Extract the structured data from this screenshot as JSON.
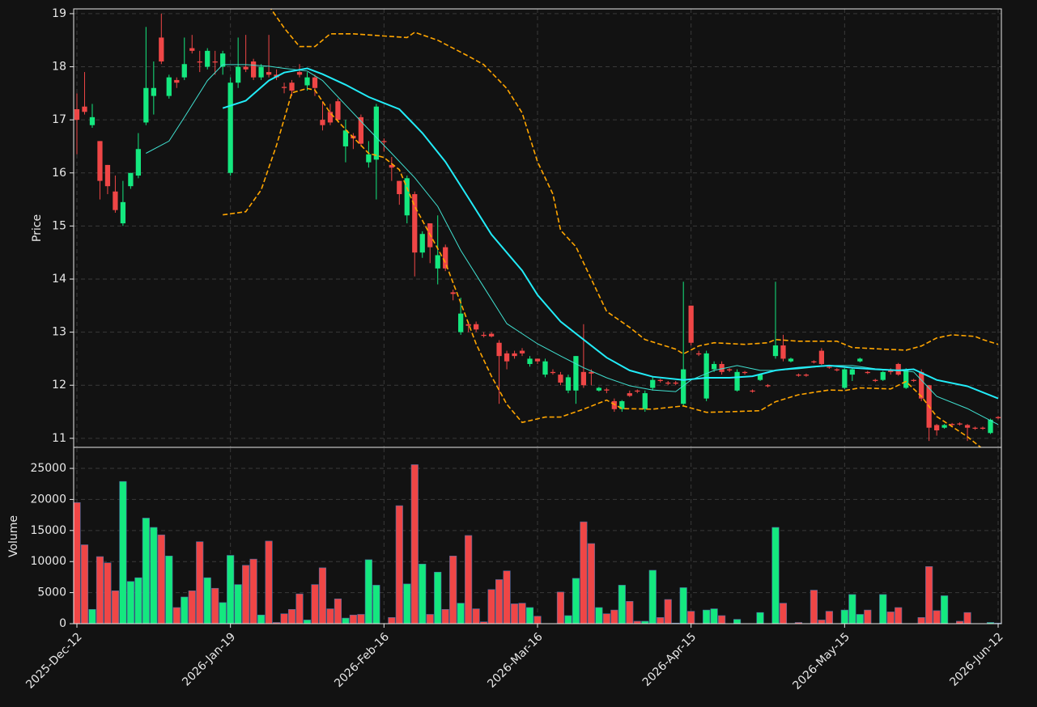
{
  "chart_data": [
    {
      "type": "candlestick",
      "ylabel": "Price",
      "categories": [
        "2025-Dec-12",
        null,
        null,
        null,
        null,
        null,
        null,
        null,
        null,
        null,
        null,
        null,
        null,
        null,
        null,
        null,
        null,
        null,
        null,
        null,
        "2026-Jan-19",
        null,
        null,
        null,
        null,
        null,
        null,
        null,
        null,
        null,
        null,
        null,
        null,
        null,
        null,
        null,
        null,
        null,
        null,
        null,
        "2026-Feb-16",
        null,
        null,
        null,
        null,
        null,
        null,
        null,
        null,
        null,
        null,
        null,
        null,
        null,
        null,
        null,
        null,
        null,
        null,
        null,
        "2026-Mar-16",
        null,
        null,
        null,
        null,
        null,
        null,
        null,
        null,
        null,
        null,
        null,
        null,
        null,
        null,
        null,
        null,
        null,
        null,
        null,
        "2026-Apr-15",
        null,
        null,
        null,
        null,
        null,
        null,
        null,
        null,
        null,
        null,
        null,
        null,
        null,
        null,
        null,
        null,
        null,
        null,
        null,
        "2026-May-15",
        null,
        null,
        null,
        null,
        null,
        null,
        null,
        null,
        null,
        null,
        null,
        null,
        null,
        null,
        null,
        null,
        null,
        null,
        null,
        "2026-Jun-12"
      ],
      "open": [
        17.2,
        17.25,
        16.9,
        16.6,
        16.15,
        15.65,
        15.05,
        15.75,
        15.95,
        16.95,
        17.45,
        18.55,
        17.45,
        17.75,
        17.8,
        18.35,
        18.1,
        18.0,
        18.1,
        18.0,
        16.0,
        17.7,
        18.0,
        18.1,
        17.8,
        17.9,
        17.85,
        17.62,
        17.7,
        17.9,
        17.65,
        17.8,
        17.0,
        17.15,
        17.35,
        16.5,
        16.7,
        17.05,
        16.2,
        16.25,
        16.6,
        16.15,
        15.85,
        15.2,
        15.6,
        14.5,
        15.05,
        14.2,
        14.6,
        13.75,
        13.0,
        13.15,
        13.15,
        12.95,
        12.97,
        12.8,
        12.6,
        12.6,
        12.65,
        12.4,
        12.5,
        12.2,
        12.25,
        12.2,
        11.9,
        11.9,
        12.25,
        12.25,
        11.9,
        11.92,
        11.7,
        11.55,
        11.85,
        11.9,
        11.55,
        11.95,
        12.1,
        12.05,
        12.05,
        11.65,
        13.5,
        12.6,
        11.75,
        12.3,
        12.4,
        12.3,
        11.9,
        12.25,
        11.9,
        12.1,
        12.0,
        12.55,
        12.75,
        12.45,
        12.2,
        12.2,
        12.45,
        12.65,
        12.35,
        12.3,
        11.95,
        12.2,
        12.45,
        12.25,
        12.1,
        12.1,
        12.3,
        12.4,
        11.95,
        12.1,
        12.25,
        12.0,
        11.25,
        11.2,
        11.27,
        11.28,
        11.25,
        11.2,
        11.2,
        11.1,
        11.4
      ],
      "high": [
        17.5,
        17.9,
        17.3,
        16.6,
        16.15,
        15.95,
        15.85,
        16.0,
        16.75,
        18.75,
        18.1,
        19.0,
        17.85,
        17.8,
        18.55,
        18.6,
        18.3,
        18.35,
        18.3,
        18.3,
        17.8,
        18.55,
        18.6,
        18.15,
        18.05,
        18.6,
        17.95,
        17.7,
        17.75,
        18.05,
        17.9,
        17.85,
        17.35,
        17.3,
        17.4,
        17.0,
        16.75,
        17.1,
        16.6,
        17.3,
        16.65,
        16.3,
        15.85,
        15.95,
        15.65,
        14.9,
        15.05,
        15.2,
        14.65,
        13.8,
        13.65,
        13.2,
        13.2,
        13.0,
        13.0,
        12.85,
        12.65,
        12.65,
        12.7,
        12.55,
        12.5,
        12.5,
        12.3,
        12.25,
        12.2,
        12.55,
        13.15,
        12.3,
        11.97,
        11.95,
        11.75,
        11.72,
        11.9,
        11.92,
        11.9,
        12.15,
        12.12,
        12.08,
        12.08,
        13.95,
        13.5,
        12.65,
        12.65,
        12.45,
        12.45,
        12.32,
        12.3,
        12.27,
        11.92,
        12.22,
        12.02,
        13.95,
        12.95,
        12.52,
        12.22,
        12.22,
        12.47,
        12.7,
        12.37,
        12.32,
        12.32,
        12.32,
        12.52,
        12.27,
        12.12,
        12.27,
        12.32,
        12.42,
        12.32,
        12.12,
        12.3,
        12.0,
        11.27,
        11.27,
        11.29,
        11.3,
        11.27,
        11.22,
        11.22,
        11.37,
        11.42
      ],
      "low": [
        16.35,
        17.1,
        16.85,
        15.5,
        15.6,
        15.25,
        15.0,
        15.7,
        15.9,
        16.9,
        17.1,
        18.05,
        17.4,
        17.6,
        17.75,
        18.25,
        17.9,
        17.95,
        17.85,
        17.85,
        15.95,
        17.6,
        17.9,
        17.75,
        17.75,
        17.8,
        17.75,
        17.5,
        17.45,
        17.8,
        17.55,
        17.45,
        16.8,
        16.9,
        16.95,
        16.2,
        16.45,
        16.5,
        16.1,
        15.5,
        16.4,
        15.85,
        15.4,
        15.05,
        14.05,
        14.4,
        14.3,
        13.9,
        14.15,
        13.6,
        12.95,
        13.0,
        13.0,
        12.9,
        12.9,
        11.65,
        12.3,
        12.5,
        12.55,
        12.35,
        12.4,
        12.15,
        12.2,
        12.0,
        11.85,
        11.65,
        11.95,
        12.0,
        11.88,
        11.85,
        11.5,
        11.5,
        11.78,
        11.85,
        11.5,
        11.9,
        12.05,
        12.0,
        12.0,
        11.6,
        12.75,
        12.55,
        11.7,
        12.25,
        12.2,
        12.25,
        11.88,
        12.2,
        11.86,
        12.08,
        11.96,
        12.5,
        12.45,
        12.43,
        12.16,
        12.16,
        12.41,
        12.38,
        12.31,
        12.26,
        11.93,
        12.08,
        12.43,
        12.21,
        12.06,
        12.08,
        12.2,
        12.18,
        11.93,
        12.06,
        11.7,
        10.95,
        11.05,
        11.18,
        11.23,
        11.24,
        10.95,
        11.16,
        11.16,
        11.08,
        11.36
      ],
      "close": [
        17.0,
        17.15,
        17.05,
        15.85,
        15.75,
        15.3,
        15.45,
        16.0,
        16.45,
        17.6,
        17.6,
        18.1,
        17.8,
        17.7,
        18.05,
        18.3,
        18.08,
        18.3,
        18.08,
        18.25,
        17.7,
        18.0,
        17.95,
        17.8,
        18.0,
        17.85,
        17.8,
        17.6,
        17.55,
        17.85,
        17.8,
        17.6,
        16.9,
        16.95,
        17.0,
        16.8,
        16.65,
        16.55,
        16.35,
        17.25,
        16.58,
        16.1,
        15.6,
        15.9,
        14.5,
        14.85,
        14.6,
        14.45,
        14.2,
        13.72,
        13.35,
        13.12,
        13.05,
        12.93,
        12.92,
        12.55,
        12.45,
        12.55,
        12.6,
        12.5,
        12.45,
        12.45,
        12.23,
        12.05,
        12.15,
        12.55,
        12.0,
        12.22,
        11.95,
        11.9,
        11.55,
        11.7,
        11.8,
        11.88,
        11.85,
        12.1,
        12.08,
        12.03,
        12.03,
        12.3,
        12.8,
        12.58,
        12.6,
        12.4,
        12.25,
        12.28,
        12.25,
        12.23,
        11.88,
        12.2,
        11.98,
        12.75,
        12.5,
        12.5,
        12.18,
        12.18,
        12.43,
        12.4,
        12.33,
        12.28,
        12.3,
        12.3,
        12.5,
        12.23,
        12.08,
        12.25,
        12.25,
        12.2,
        12.3,
        12.08,
        11.75,
        11.2,
        11.15,
        11.25,
        11.25,
        11.26,
        11.2,
        11.18,
        11.18,
        11.35,
        11.38
      ],
      "up_color": "#14e87f",
      "down_color": "#ef4646",
      "ylim": [
        10.83,
        19.09
      ],
      "yticks": [
        11,
        12,
        13,
        14,
        15,
        16,
        17,
        18,
        19
      ],
      "grid": true,
      "series": [
        {
          "color": "#40e0d0",
          "width": 1,
          "x": [
            9,
            12,
            14,
            17,
            19,
            22,
            25,
            27,
            30,
            32,
            35,
            38,
            41,
            44,
            47,
            50,
            53,
            56,
            60,
            63,
            66,
            69,
            72,
            75,
            78,
            80,
            83,
            86,
            89,
            91,
            94,
            98,
            101,
            104,
            107,
            109,
            112,
            116,
            120
          ],
          "values": [
            16.37,
            16.6,
            17.05,
            17.74,
            18.04,
            18.04,
            18.01,
            17.97,
            17.92,
            17.74,
            17.28,
            16.82,
            16.37,
            15.91,
            15.37,
            14.54,
            13.85,
            13.16,
            12.78,
            12.55,
            12.33,
            12.14,
            11.99,
            11.91,
            11.88,
            12.1,
            12.28,
            12.37,
            12.28,
            12.28,
            12.31,
            12.37,
            12.37,
            12.31,
            12.28,
            12.25,
            11.79,
            11.56,
            11.26
          ]
        },
        {
          "color": "#22ecf8",
          "width": 2,
          "x": [
            19,
            22,
            25,
            27,
            30,
            32,
            35,
            38,
            42,
            45,
            48,
            51,
            54,
            58,
            60,
            63,
            66,
            69,
            72,
            75,
            79,
            82,
            85,
            88,
            91,
            94,
            98,
            101,
            104,
            107,
            109,
            112,
            116,
            120
          ],
          "values": [
            17.22,
            17.36,
            17.74,
            17.89,
            17.97,
            17.86,
            17.66,
            17.43,
            17.2,
            16.75,
            16.21,
            15.53,
            14.84,
            14.16,
            13.7,
            13.2,
            12.86,
            12.52,
            12.28,
            12.16,
            12.1,
            12.14,
            12.14,
            12.17,
            12.28,
            12.33,
            12.37,
            12.33,
            12.3,
            12.28,
            12.3,
            12.1,
            11.98,
            11.75
          ]
        },
        {
          "color": "#ffa500",
          "width": 1.6,
          "dashed": true,
          "x": [
            25,
            27,
            29,
            31,
            33,
            36,
            40,
            43,
            44,
            47,
            49,
            51,
            53,
            56,
            58,
            60,
            62,
            63,
            65,
            67,
            69,
            72,
            74,
            78,
            79,
            81,
            83,
            87,
            90,
            91,
            94,
            99,
            101,
            105,
            108,
            110,
            112,
            114,
            117,
            118,
            120
          ],
          "values": [
            19.15,
            18.73,
            18.38,
            18.38,
            18.62,
            18.62,
            18.58,
            18.55,
            18.65,
            18.5,
            18.35,
            18.2,
            18.04,
            17.59,
            17.13,
            16.21,
            15.6,
            14.92,
            14.61,
            14.0,
            13.39,
            13.09,
            12.86,
            12.68,
            12.59,
            12.74,
            12.8,
            12.77,
            12.8,
            12.86,
            12.83,
            12.83,
            12.71,
            12.68,
            12.66,
            12.74,
            12.89,
            12.95,
            12.92,
            12.86,
            12.77
          ]
        },
        {
          "color": "#ffa500",
          "width": 1.6,
          "dashed": true,
          "x": [
            19,
            22,
            24,
            26,
            28,
            30,
            31,
            33,
            35,
            38,
            40,
            42,
            44,
            46,
            48,
            50,
            52,
            54,
            56,
            58,
            61,
            63,
            66,
            69,
            71,
            75,
            79,
            82,
            85,
            89,
            91,
            94,
            98,
            100,
            102,
            106,
            108,
            110,
            112,
            116,
            118
          ],
          "values": [
            15.21,
            15.27,
            15.68,
            16.52,
            17.51,
            17.59,
            17.56,
            17.13,
            16.82,
            16.37,
            16.29,
            16.06,
            15.37,
            14.84,
            14.31,
            13.55,
            12.78,
            12.17,
            11.64,
            11.3,
            11.4,
            11.4,
            11.55,
            11.72,
            11.56,
            11.55,
            11.61,
            11.49,
            11.5,
            11.52,
            11.69,
            11.82,
            11.91,
            11.9,
            11.95,
            11.93,
            12.07,
            11.79,
            11.41,
            11.03,
            10.8
          ]
        }
      ]
    },
    {
      "type": "bar",
      "ylabel": "Volume",
      "values": [
        19500,
        12700,
        2300,
        10800,
        9800,
        5300,
        22900,
        6800,
        7400,
        17000,
        15500,
        14300,
        10900,
        2600,
        4300,
        5300,
        13200,
        7400,
        5700,
        3400,
        11000,
        6300,
        9400,
        10400,
        1400,
        13300,
        200,
        1600,
        2300,
        4800,
        600,
        6300,
        9000,
        2400,
        4000,
        900,
        1400,
        1500,
        10300,
        6200,
        0,
        1000,
        19000,
        6400,
        25600,
        9600,
        1500,
        8300,
        2300,
        10900,
        3300,
        14200,
        2400,
        300,
        5500,
        7100,
        8500,
        3200,
        3300,
        2600,
        1200,
        0,
        0,
        5100,
        1300,
        7300,
        16400,
        12900,
        2600,
        1600,
        2200,
        6200,
        3600,
        400,
        400,
        8600,
        1000,
        3900,
        100,
        5800,
        2000,
        0,
        2200,
        2400,
        1300,
        0,
        700,
        0,
        0,
        1800,
        0,
        15500,
        3300,
        0,
        200,
        0,
        5400,
        600,
        2000,
        0,
        2200,
        4700,
        1500,
        2200,
        0,
        4700,
        1900,
        2600,
        0,
        0,
        1000,
        9200,
        2100,
        4500,
        0,
        400,
        1800,
        0,
        0,
        200,
        100
      ],
      "edge_color": "#4a6fa5",
      "ylim": [
        0,
        28260
      ],
      "yticks": [
        0,
        5000,
        10000,
        15000,
        20000,
        25000
      ],
      "grid": true
    }
  ]
}
